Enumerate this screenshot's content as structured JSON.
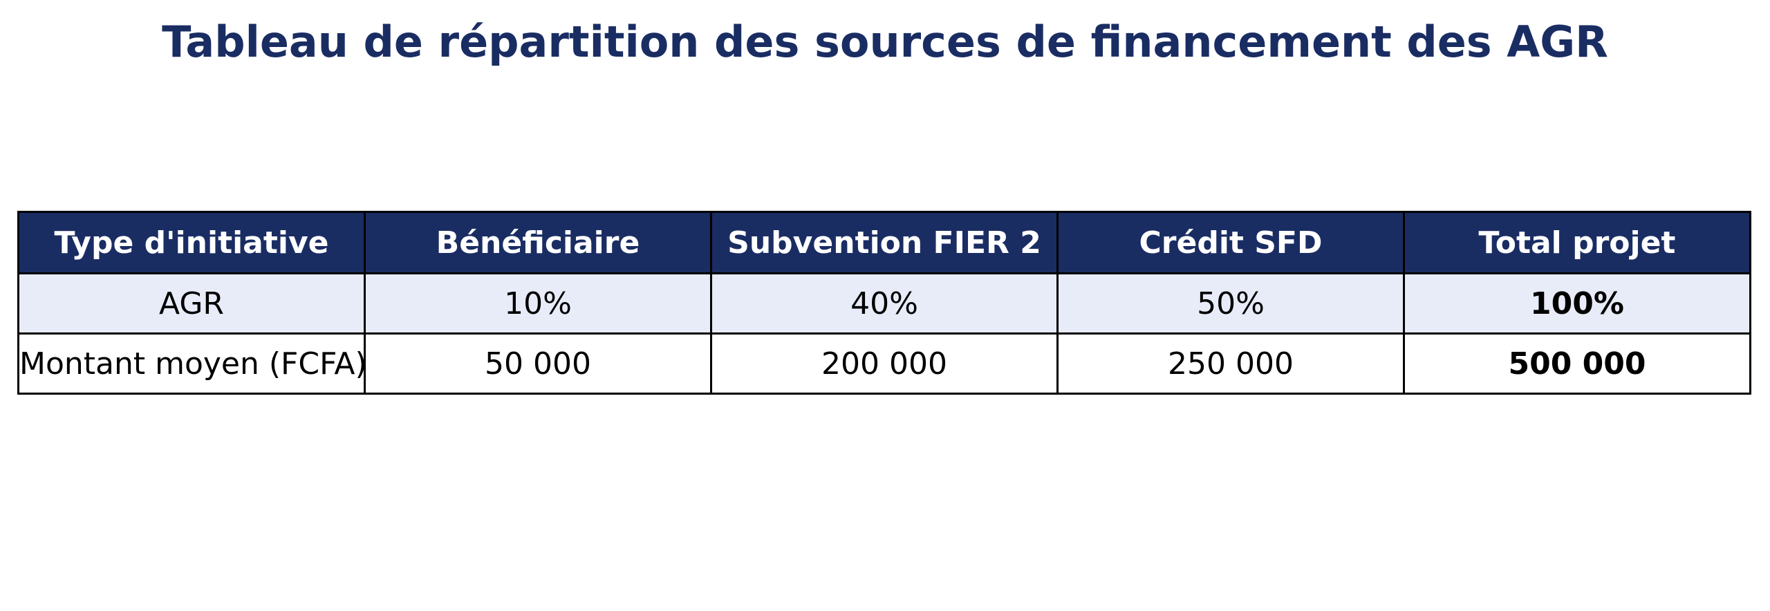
{
  "chart_data": {
    "type": "table",
    "title": "Tableau de répartition des sources de financement des AGR",
    "columns": [
      "Type d'initiative",
      "Bénéficiaire",
      "Subvention FIER 2",
      "Crédit SFD",
      "Total projet"
    ],
    "rows": [
      [
        "AGR",
        "10%",
        "40%",
        "50%",
        "100%"
      ],
      [
        "Montant moyen (FCFA)",
        "50 000",
        "200 000",
        "250 000",
        "500 000"
      ]
    ],
    "layout_hints": {
      "header_style": "navy background, white bold text",
      "row_1_style": "light periwinkle background",
      "row_2_style": "white background",
      "last_column": "bold values",
      "borders": "black grid lines"
    }
  },
  "colors": {
    "title_text": "#1A2D63",
    "header_bg": "#1A2D63",
    "header_text": "#FFFFFF",
    "row_alt_bg": "#E8ECF8",
    "row_plain_bg": "#FFFFFF",
    "body_text": "#000000",
    "border": "#000000",
    "page_bg": "#FFFFFF"
  }
}
